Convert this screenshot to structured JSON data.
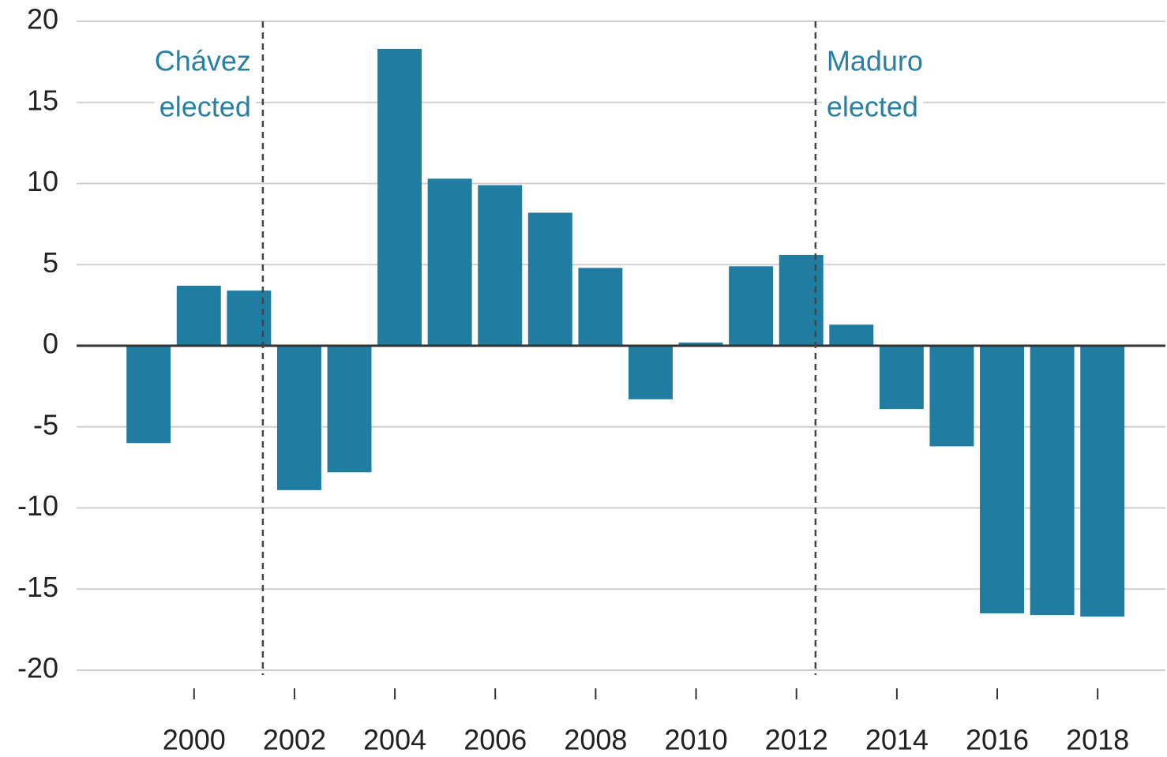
{
  "chart_data": {
    "type": "bar",
    "x": [
      1999,
      2000,
      2001,
      2002,
      2003,
      2004,
      2005,
      2006,
      2007,
      2008,
      2009,
      2010,
      2011,
      2012,
      2013,
      2014,
      2015,
      2016,
      2017,
      2018
    ],
    "values": [
      -6.0,
      3.7,
      3.4,
      -8.9,
      -7.8,
      18.3,
      10.3,
      9.9,
      8.2,
      4.8,
      -3.3,
      0.2,
      4.9,
      5.6,
      1.3,
      -3.9,
      -6.2,
      -16.5,
      -16.6,
      -16.7
    ],
    "color": "#217ca1",
    "xlim": [
      1997.66,
      2019.35
    ],
    "xticks": [
      2000,
      2002,
      2004,
      2006,
      2008,
      2010,
      2012,
      2014,
      2016,
      2018
    ],
    "ylim": [
      -20,
      20
    ],
    "yticks": [
      -20,
      -15,
      -10,
      -5,
      0,
      5,
      10,
      15,
      20
    ],
    "grid": true,
    "annotations": [
      {
        "x": 2001.37,
        "lines": [
          "Chávez",
          "elected"
        ],
        "side": "left"
      },
      {
        "x": 2012.38,
        "lines": [
          "Maduro",
          "elected"
        ],
        "side": "right"
      }
    ]
  }
}
